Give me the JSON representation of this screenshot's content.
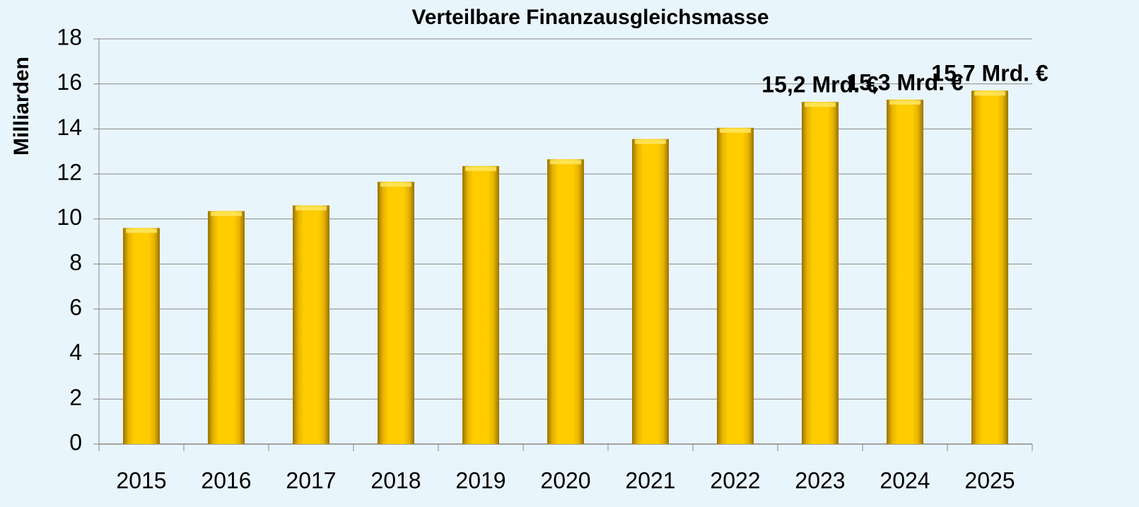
{
  "chart_data": {
    "type": "bar",
    "title": "Verteilbare Finanzausgleichsmasse",
    "y_label": "Milliarden",
    "categories": [
      "2015",
      "2016",
      "2017",
      "2018",
      "2019",
      "2020",
      "2021",
      "2022",
      "2023",
      "2024",
      "2025"
    ],
    "values": [
      9.6,
      10.35,
      10.6,
      11.65,
      12.35,
      12.65,
      13.55,
      14.05,
      15.2,
      15.3,
      15.7
    ],
    "value_labels": [
      null,
      null,
      null,
      null,
      null,
      null,
      null,
      null,
      "15,2 Mrd. €",
      "15,3 Mrd. €",
      "15,7 Mrd. €"
    ],
    "color": "#ffcc00",
    "ylim": [
      0,
      18
    ],
    "yticks": [
      0,
      2,
      4,
      6,
      8,
      10,
      12,
      14,
      16,
      18
    ],
    "grid": true
  }
}
